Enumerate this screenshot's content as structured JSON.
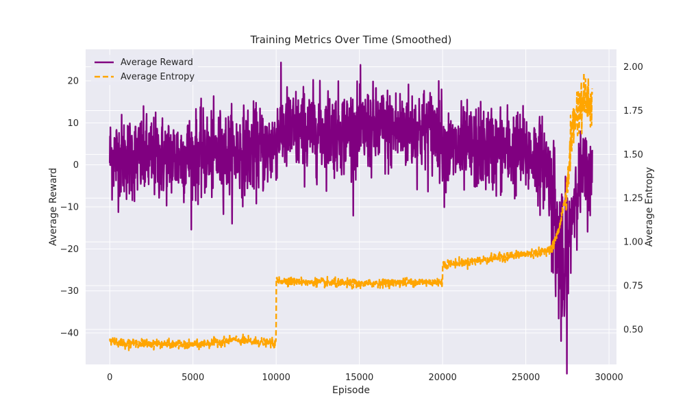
{
  "chart_data": {
    "type": "line",
    "title": "Training Metrics Over Time (Smoothed)",
    "xlabel": "Episode",
    "ylabel": "Average Reward",
    "ylabel_right": "Average Entropy",
    "xlim": [
      -1450,
      30450
    ],
    "ylim": [
      -47.5,
      27.5
    ],
    "ylim_right": [
      0.3,
      2.1
    ],
    "xticks": [
      0,
      5000,
      10000,
      15000,
      20000,
      25000,
      30000
    ],
    "xtick_labels": [
      "0",
      "5000",
      "10000",
      "15000",
      "20000",
      "25000",
      "30000"
    ],
    "yticks": [
      -40,
      -30,
      -20,
      -10,
      0,
      10,
      20
    ],
    "ytick_labels": [
      "−40",
      "−30",
      "−20",
      "−10",
      "0",
      "10",
      "20"
    ],
    "yticks_right": [
      0.5,
      0.75,
      1.0,
      1.25,
      1.5,
      1.75,
      2.0
    ],
    "ytick_labels_right": [
      "0.50",
      "0.75",
      "1.00",
      "1.25",
      "1.50",
      "1.75",
      "2.00"
    ],
    "grid": true,
    "legend_position": "top-left",
    "series": [
      {
        "name": "Average Reward",
        "axis": "left",
        "color": "#800080",
        "style": "solid",
        "noise": 5,
        "x": [
          0,
          2000,
          5000,
          7500,
          9800,
          10100,
          12000,
          15000,
          18000,
          19900,
          20100,
          22000,
          24000,
          25500,
          26300,
          26700,
          27000,
          27300,
          27600,
          28000,
          28500,
          29000
        ],
        "y": [
          2,
          1.5,
          2,
          3,
          4,
          8,
          8,
          8,
          8.5,
          8,
          3,
          4,
          3.5,
          2,
          0,
          -10,
          -22,
          -30,
          -17,
          -5,
          -2,
          -4
        ]
      },
      {
        "name": "Average Entropy",
        "axis": "right",
        "color": "#FFA500",
        "style": "dashed",
        "noise": 0.012,
        "x": [
          0,
          1000,
          2500,
          5000,
          7500,
          9990,
          10010,
          12000,
          15000,
          17500,
          19990,
          20010,
          22000,
          24000,
          26000,
          26600,
          27000,
          27200,
          27500,
          27700,
          28000,
          28500,
          29000
        ],
        "y": [
          0.44,
          0.42,
          0.42,
          0.41,
          0.44,
          0.42,
          0.78,
          0.77,
          0.76,
          0.77,
          0.77,
          0.87,
          0.89,
          0.92,
          0.94,
          0.97,
          1.07,
          1.18,
          1.28,
          1.6,
          1.73,
          1.82,
          1.78
        ]
      }
    ]
  }
}
